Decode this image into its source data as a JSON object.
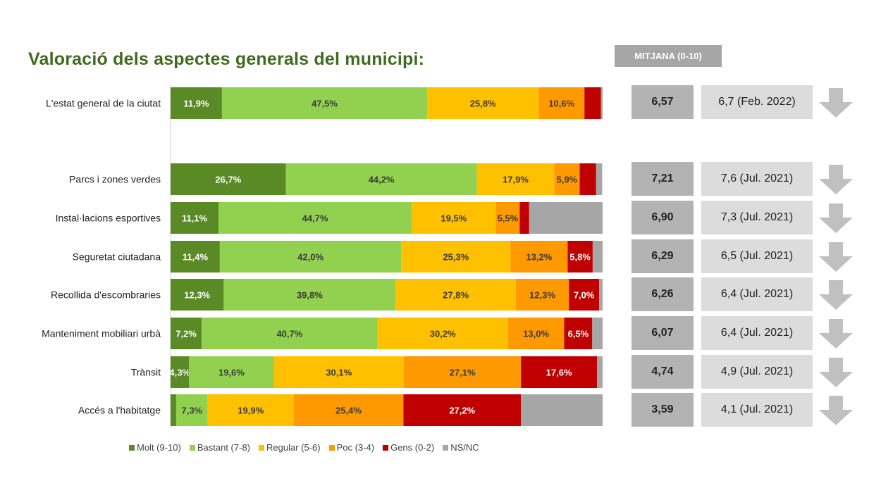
{
  "title": "Valoració dels aspectes generals del municipi:",
  "mitjana_header": "MITJANA (0-10)",
  "colors": {
    "molt": "#5a8a26",
    "bastant": "#92d050",
    "regular": "#ffc000",
    "poc": "#ff9900",
    "gens": "#c00000",
    "nsnc": "#a6a6a6"
  },
  "legend": [
    {
      "key": "molt",
      "label": "Molt (9-10)"
    },
    {
      "key": "bastant",
      "label": "Bastant (7-8)"
    },
    {
      "key": "regular",
      "label": "Regular (5-6)"
    },
    {
      "key": "poc",
      "label": "Poc (3-4)"
    },
    {
      "key": "gens",
      "label": "Gens (0-2)"
    },
    {
      "key": "nsnc",
      "label": "NS/NC"
    }
  ],
  "chart_data": {
    "type": "bar",
    "orientation": "horizontal-stacked-100",
    "categories": [
      "L'estat general de la ciutat",
      "Parcs i zones verdes",
      "Instal·lacions esportives",
      "Seguretat ciutadana",
      "Recollida d'escombraries",
      "Manteniment mobiliari urbà",
      "Trànsit",
      "Accés a l'habitatge"
    ],
    "series": [
      {
        "name": "Molt (9-10)",
        "key": "molt",
        "values": [
          11.9,
          26.7,
          11.1,
          11.4,
          12.3,
          7.2,
          4.3,
          1.3
        ]
      },
      {
        "name": "Bastant (7-8)",
        "key": "bastant",
        "values": [
          47.5,
          44.2,
          44.7,
          42.0,
          39.8,
          40.7,
          19.6,
          7.3
        ]
      },
      {
        "name": "Regular (5-6)",
        "key": "regular",
        "values": [
          25.8,
          17.9,
          19.5,
          25.3,
          27.8,
          30.2,
          30.1,
          19.9
        ]
      },
      {
        "name": "Poc (3-4)",
        "key": "poc",
        "values": [
          10.6,
          5.9,
          5.5,
          13.2,
          12.3,
          13.0,
          27.1,
          25.4
        ]
      },
      {
        "name": "Gens (0-2)",
        "key": "gens",
        "values": [
          3.8,
          3.8,
          2.2,
          5.8,
          7.0,
          6.5,
          17.6,
          27.2
        ]
      },
      {
        "name": "NS/NC",
        "key": "nsnc",
        "values": [
          0.4,
          1.4,
          17.0,
          2.3,
          0.8,
          2.4,
          1.3,
          18.9
        ]
      }
    ],
    "labels": [
      [
        "11,9%",
        "47,5%",
        "25,8%",
        "10,6%",
        "",
        ""
      ],
      [
        "26,7%",
        "44,2%",
        "17,9%",
        "5,9%",
        "",
        ""
      ],
      [
        "11,1%",
        "44,7%",
        "19,5%",
        "5,5%",
        "",
        ""
      ],
      [
        "11,4%",
        "42,0%",
        "25,3%",
        "13,2%",
        "5,8%",
        ""
      ],
      [
        "12,3%",
        "39,8%",
        "27,8%",
        "12,3%",
        "7,0%",
        ""
      ],
      [
        "7,2%",
        "40,7%",
        "30,2%",
        "13,0%",
        "6,5%",
        ""
      ],
      [
        "4,3%",
        "19,6%",
        "30,1%",
        "27,1%",
        "17,6%",
        ""
      ],
      [
        "",
        "7,3%",
        "19,9%",
        "25,4%",
        "27,2%",
        ""
      ]
    ],
    "xlim": [
      0,
      100
    ]
  },
  "averages": [
    "6,57",
    "7,21",
    "6,90",
    "6,29",
    "6,26",
    "6,07",
    "4,74",
    "3,59"
  ],
  "previous": [
    "6,7 (Feb. 2022)",
    "7,6 (Jul. 2021)",
    "7,3 (Jul. 2021)",
    "6,5 (Jul. 2021)",
    "6,4 (Jul. 2021)",
    "6,4 (Jul. 2021)",
    "4,9 (Jul. 2021)",
    "4,1 (Jul. 2021)"
  ],
  "trend_icon": "arrow-down-icon"
}
